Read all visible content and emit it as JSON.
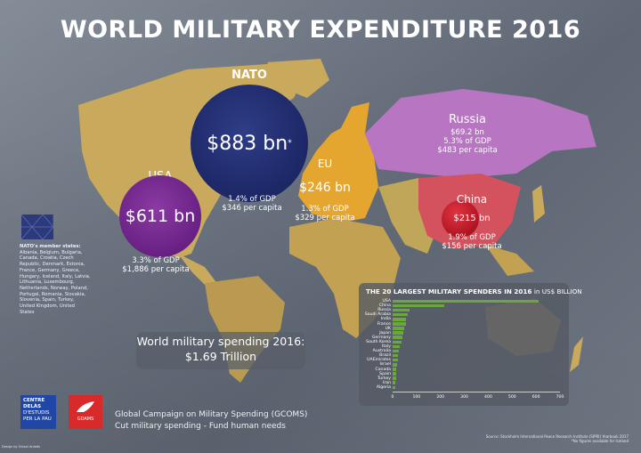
{
  "title": "WORLD MILITARY EXPENDITURE 2016",
  "regions": {
    "nato": {
      "name": "NATO",
      "value": "$883 bn",
      "note_mark": "*",
      "gdp": "1.4% of GDP",
      "per_capita": "$346 per capita"
    },
    "usa": {
      "name": "USA",
      "value": "$611 bn",
      "gdp": "3.3% of GDP",
      "per_capita": "$1,886 per capita"
    },
    "eu": {
      "name": "EU",
      "value": "$246 bn",
      "gdp": "1.3% of GDP",
      "per_capita": "$329 per capita"
    },
    "russia": {
      "name": "Russia",
      "value": "$69.2 bn",
      "gdp": "5.3% of GDP",
      "per_capita": "$483 per capita"
    },
    "china": {
      "name": "China",
      "value": "$215 bn",
      "gdp": "1.9% of GDP",
      "per_capita": "$156 per capita"
    }
  },
  "nato_members": {
    "heading": "NATO's member states:",
    "list": "Albania, Belgium, Bulgaria, Canada, Croatia, Czech Republic, Denmark, Estonia, France, Germany, Greece, Hungary, Iceland, Italy, Latvia, Lithuania, Luxembourg, Netherlands, Norway, Poland, Portugal, Romania, Slovakia, Slovenia, Spain, Turkey, United Kingdom, United States"
  },
  "world_box": {
    "line1": "World military spending 2016:",
    "line2": "$1.69 Trillion"
  },
  "chart_data": {
    "type": "bar",
    "orientation": "horizontal",
    "title": "THE 20 LARGEST MILITARY SPENDERS IN 2016",
    "title_suffix": "in US$ BILLION",
    "categories": [
      "USA",
      "China",
      "Russia",
      "Saudi Arabia",
      "India",
      "France",
      "UK",
      "Japan",
      "Germany",
      "South Korea",
      "Italy",
      "Australia",
      "Brazil",
      "UAEmirates",
      "Israel",
      "Canada",
      "Spain",
      "Turkey",
      "Iran",
      "Algeria"
    ],
    "values": [
      611,
      215,
      69,
      64,
      56,
      56,
      48,
      46,
      41,
      37,
      28,
      25,
      23,
      23,
      18,
      15,
      15,
      15,
      12,
      10
    ],
    "xticks": [
      "0",
      "100",
      "200",
      "300",
      "400",
      "500",
      "600",
      "700"
    ],
    "xlim": [
      0,
      700
    ],
    "bar_color": "#6aa83c"
  },
  "footer": {
    "logo1": [
      "CENTRE DELÀS",
      "D'ESTUDIS",
      "PER LA PAU"
    ],
    "logo2": "GDAMS",
    "line1": "Global Campaign on Military Spending (GCOMS)",
    "line2": "Cut military spending - Fund human needs",
    "source": "Source: Stockholm International Peace Research Institute (SIPRI) Yearbook 2017",
    "footnote": "*No figures available for Iceland",
    "credit": "Design by Octavi Andrés"
  }
}
